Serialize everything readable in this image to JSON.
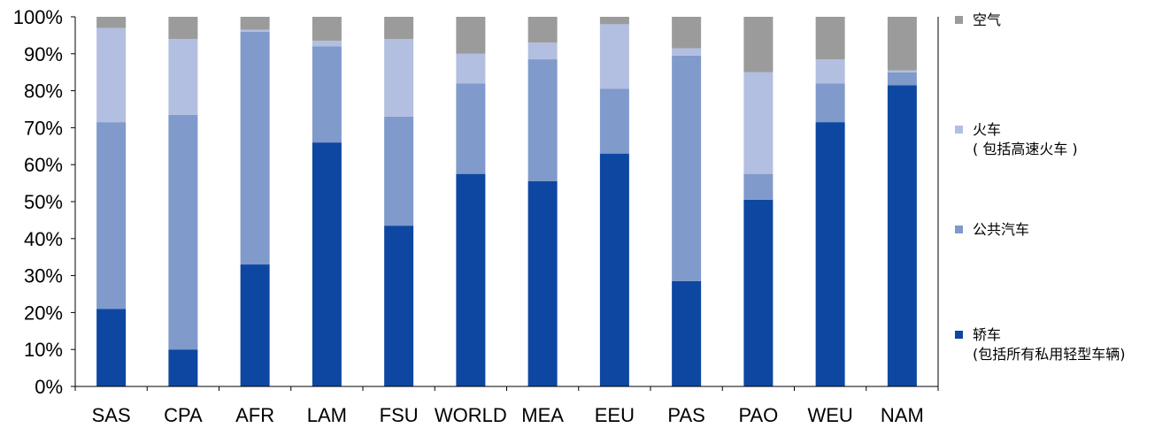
{
  "chart_data": {
    "type": "bar",
    "stacked": true,
    "percent": true,
    "categories": [
      "SAS",
      "CPA",
      "AFR",
      "LAM",
      "FSU",
      "WORLD",
      "MEA",
      "EEU",
      "PAS",
      "PAO",
      "WEU",
      "NAM"
    ],
    "yticks": [
      "0%",
      "10%",
      "20%",
      "30%",
      "40%",
      "50%",
      "60%",
      "70%",
      "80%",
      "90%",
      "100%"
    ],
    "ylim": [
      0,
      100
    ],
    "legend_position": "right",
    "series": [
      {
        "name": "轿车",
        "name_line2": "(包括所有私用轻型车辆)",
        "color": "#0d47a1",
        "values": [
          21,
          10,
          33,
          66,
          43.5,
          57.5,
          55.5,
          63,
          28.5,
          50.5,
          71.5,
          81.5
        ]
      },
      {
        "name": "公共汽车",
        "name_line2": "",
        "color": "#7f9acb",
        "values": [
          50.5,
          63.5,
          63,
          26,
          29.5,
          24.5,
          33,
          17.5,
          61,
          7,
          10.5,
          3.5
        ]
      },
      {
        "name": "火车",
        "name_line2": "( 包括高速火车 )",
        "color": "#b2bfe0",
        "values": [
          25.5,
          20.5,
          0.5,
          1.5,
          21,
          8,
          4.5,
          17.5,
          2,
          27.5,
          6.5,
          0.5
        ]
      },
      {
        "name": "空气",
        "name_line2": "",
        "color": "#9b9b9b",
        "values": [
          3,
          6,
          3.5,
          6.5,
          6,
          10,
          7,
          2,
          8.5,
          15,
          11.5,
          14.5
        ]
      }
    ]
  }
}
